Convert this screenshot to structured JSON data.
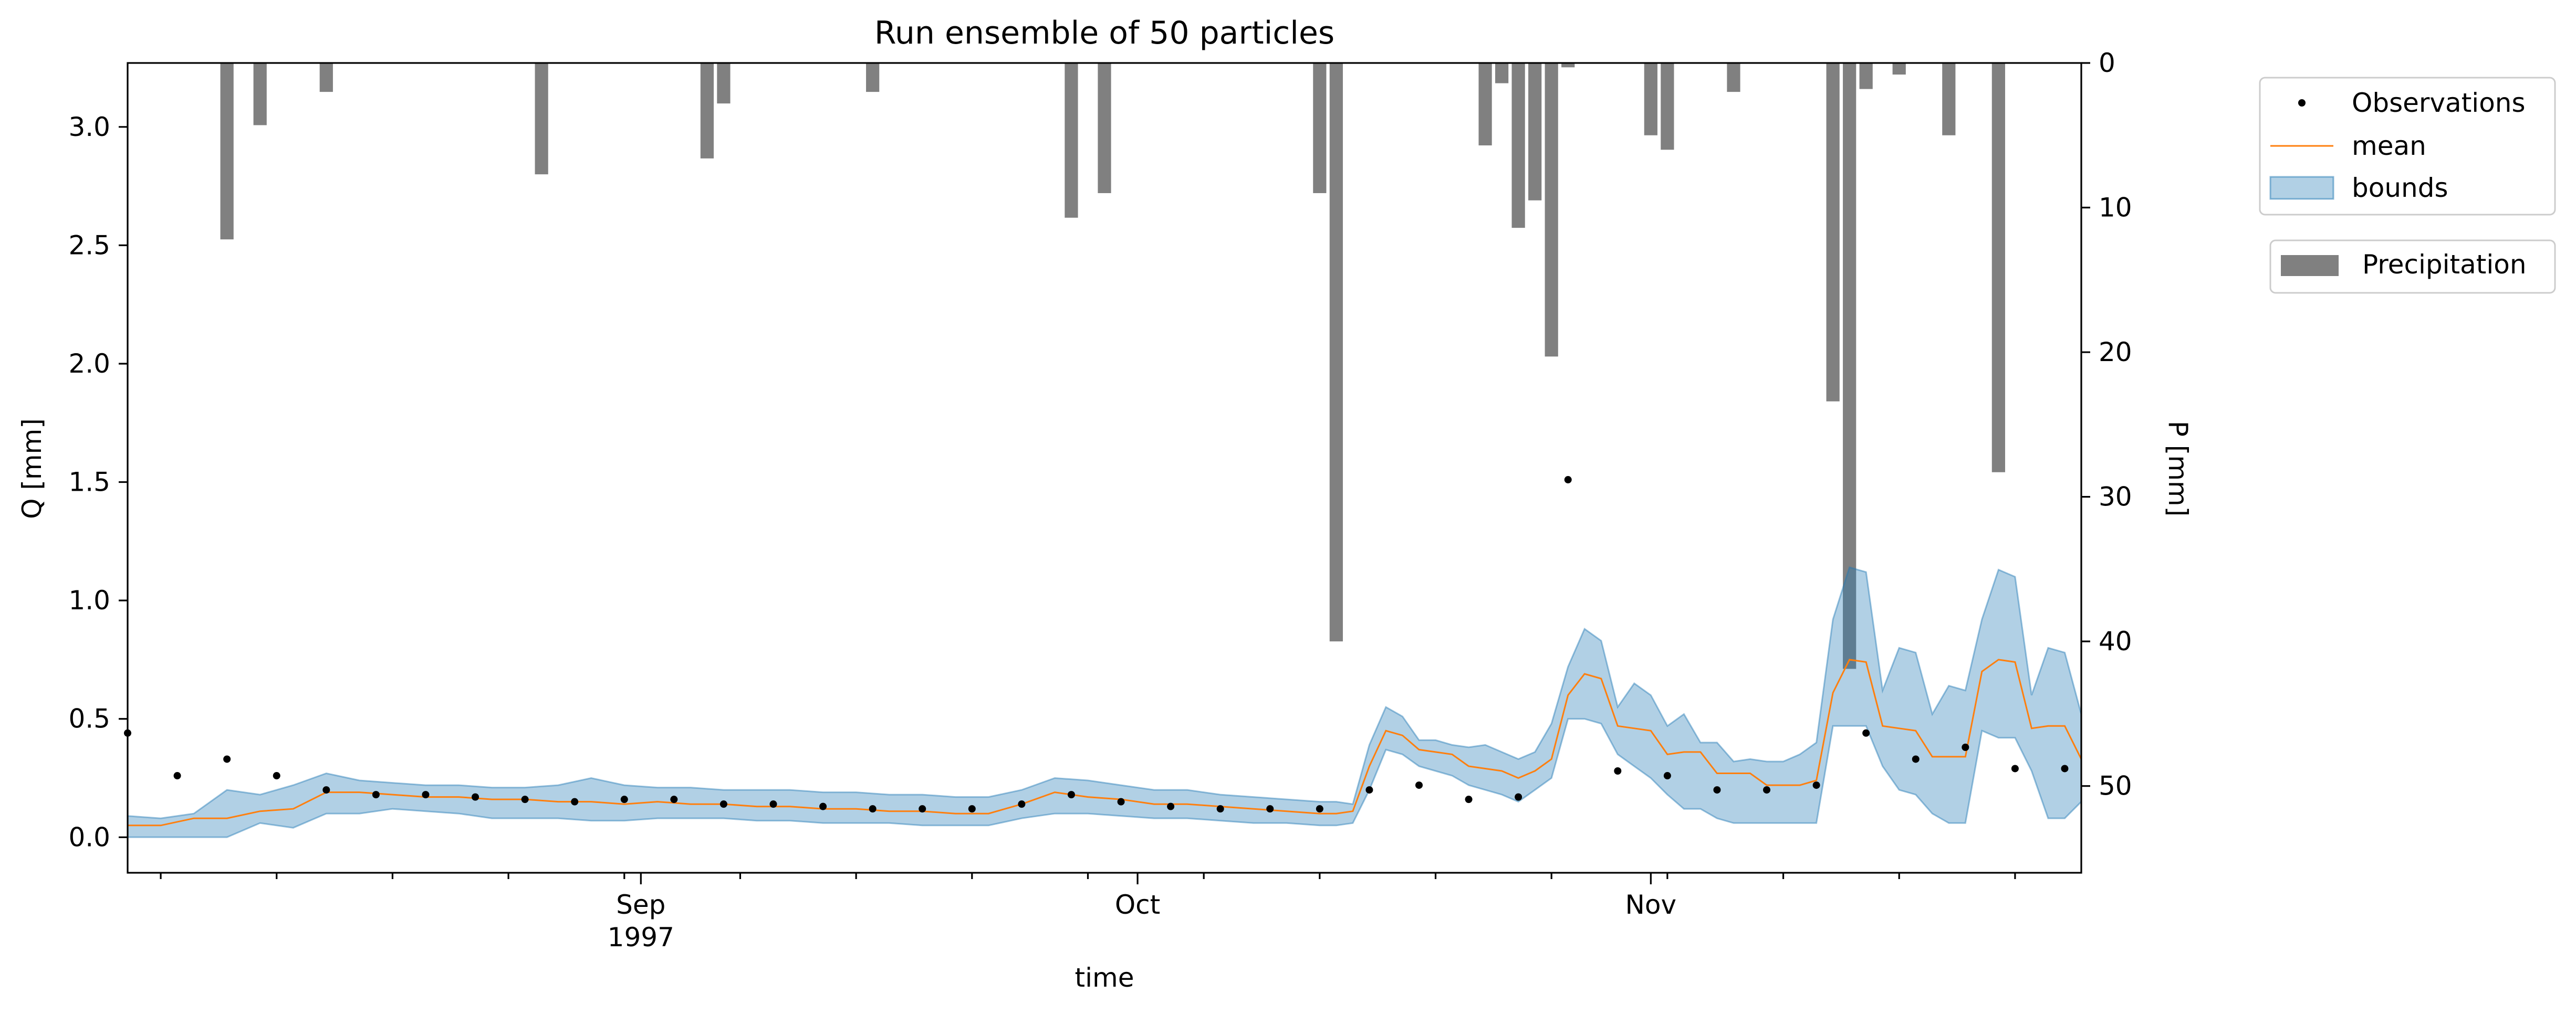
{
  "chart_data": {
    "type": "line",
    "title": "Run ensemble of 50 particles",
    "xlabel": "time",
    "ylabel_left": "Q [mm]",
    "ylabel_right": "P [mm]",
    "x_start": "1997-08-01",
    "x_end": "1997-11-27",
    "x_major_ticks": [
      {
        "date": "1997-09-01",
        "label": "Sep",
        "sublabel": "1997"
      },
      {
        "date": "1997-10-01",
        "label": "Oct",
        "sublabel": ""
      },
      {
        "date": "1997-11-01",
        "label": "Nov",
        "sublabel": ""
      }
    ],
    "x_minor_ticks": [
      "1997-08-03",
      "1997-08-10",
      "1997-08-17",
      "1997-08-24",
      "1997-08-31",
      "1997-09-07",
      "1997-09-14",
      "1997-09-21",
      "1997-09-28",
      "1997-10-05",
      "1997-10-12",
      "1997-10-19",
      "1997-10-26",
      "1997-11-02",
      "1997-11-09",
      "1997-11-16",
      "1997-11-23"
    ],
    "ylim_left": [
      -0.15,
      3.27
    ],
    "yticks_left": [
      0.0,
      0.5,
      1.0,
      1.5,
      2.0,
      2.5,
      3.0
    ],
    "ytick_labels_left": [
      "0.0",
      "0.5",
      "1.0",
      "1.5",
      "2.0",
      "2.5",
      "3.0"
    ],
    "ylim_right": [
      56,
      0
    ],
    "yticks_right": [
      0,
      10,
      20,
      30,
      40,
      50
    ],
    "ytick_labels_right": [
      "0",
      "10",
      "20",
      "30",
      "40",
      "50"
    ],
    "right_axis_inverted": true,
    "legend_entries": [
      "Observations",
      "mean",
      "bounds"
    ],
    "precip_legend_label": "Precipitation",
    "colors": {
      "observations": "#000000",
      "mean": "#ff7f0e",
      "bounds_fill": "#1f77b4",
      "precipitation": "#808080"
    },
    "series": [
      {
        "name": "Observations",
        "kind": "points",
        "x": [
          "1997-08-01",
          "1997-08-04",
          "1997-08-07",
          "1997-08-10",
          "1997-08-13",
          "1997-08-16",
          "1997-08-19",
          "1997-08-22",
          "1997-08-25",
          "1997-08-28",
          "1997-08-31",
          "1997-09-03",
          "1997-09-06",
          "1997-09-09",
          "1997-09-12",
          "1997-09-15",
          "1997-09-18",
          "1997-09-21",
          "1997-09-24",
          "1997-09-27",
          "1997-09-30",
          "1997-10-03",
          "1997-10-06",
          "1997-10-09",
          "1997-10-12",
          "1997-10-15",
          "1997-10-18",
          "1997-10-21",
          "1997-10-24",
          "1997-10-27",
          "1997-10-30",
          "1997-11-02",
          "1997-11-05",
          "1997-11-08",
          "1997-11-11",
          "1997-11-14",
          "1997-11-17",
          "1997-11-20",
          "1997-11-23",
          "1997-11-26"
        ],
        "y": [
          0.44,
          0.26,
          0.33,
          0.26,
          0.2,
          0.18,
          0.18,
          0.17,
          0.16,
          0.15,
          0.16,
          0.16,
          0.14,
          0.14,
          0.13,
          0.12,
          0.12,
          0.12,
          0.14,
          0.18,
          0.15,
          0.13,
          0.12,
          0.12,
          0.12,
          0.2,
          0.22,
          0.16,
          0.17,
          1.51,
          0.28,
          0.26,
          0.2,
          0.2,
          0.22,
          0.44,
          0.33,
          0.38,
          0.29,
          0.29
        ]
      },
      {
        "name": "mean",
        "kind": "line",
        "x": [
          "1997-08-01",
          "1997-08-03",
          "1997-08-05",
          "1997-08-07",
          "1997-08-09",
          "1997-08-11",
          "1997-08-13",
          "1997-08-15",
          "1997-08-17",
          "1997-08-19",
          "1997-08-21",
          "1997-08-23",
          "1997-08-25",
          "1997-08-27",
          "1997-08-29",
          "1997-08-31",
          "1997-09-02",
          "1997-09-04",
          "1997-09-06",
          "1997-09-08",
          "1997-09-10",
          "1997-09-12",
          "1997-09-14",
          "1997-09-16",
          "1997-09-18",
          "1997-09-20",
          "1997-09-22",
          "1997-09-24",
          "1997-09-26",
          "1997-09-28",
          "1997-09-30",
          "1997-10-02",
          "1997-10-04",
          "1997-10-06",
          "1997-10-08",
          "1997-10-10",
          "1997-10-12",
          "1997-10-13",
          "1997-10-14",
          "1997-10-15",
          "1997-10-16",
          "1997-10-17",
          "1997-10-18",
          "1997-10-19",
          "1997-10-20",
          "1997-10-21",
          "1997-10-22",
          "1997-10-23",
          "1997-10-24",
          "1997-10-25",
          "1997-10-26",
          "1997-10-27",
          "1997-10-28",
          "1997-10-29",
          "1997-10-30",
          "1997-10-31",
          "1997-11-01",
          "1997-11-02",
          "1997-11-03",
          "1997-11-04",
          "1997-11-05",
          "1997-11-06",
          "1997-11-07",
          "1997-11-08",
          "1997-11-09",
          "1997-11-10",
          "1997-11-11",
          "1997-11-12",
          "1997-11-13",
          "1997-11-14",
          "1997-11-15",
          "1997-11-16",
          "1997-11-17",
          "1997-11-18",
          "1997-11-19",
          "1997-11-20",
          "1997-11-21",
          "1997-11-22",
          "1997-11-23",
          "1997-11-24",
          "1997-11-25",
          "1997-11-26",
          "1997-11-27"
        ],
        "y": [
          0.05,
          0.05,
          0.08,
          0.08,
          0.11,
          0.12,
          0.19,
          0.19,
          0.18,
          0.17,
          0.17,
          0.16,
          0.16,
          0.15,
          0.15,
          0.14,
          0.15,
          0.14,
          0.14,
          0.13,
          0.13,
          0.12,
          0.12,
          0.11,
          0.11,
          0.1,
          0.1,
          0.14,
          0.19,
          0.17,
          0.16,
          0.14,
          0.14,
          0.13,
          0.12,
          0.11,
          0.1,
          0.1,
          0.11,
          0.3,
          0.45,
          0.43,
          0.37,
          0.36,
          0.35,
          0.3,
          0.29,
          0.28,
          0.25,
          0.28,
          0.33,
          0.6,
          0.69,
          0.67,
          0.47,
          0.46,
          0.45,
          0.35,
          0.36,
          0.36,
          0.27,
          0.27,
          0.27,
          0.22,
          0.22,
          0.22,
          0.24,
          0.61,
          0.75,
          0.74,
          0.47,
          0.46,
          0.45,
          0.34,
          0.34,
          0.34,
          0.7,
          0.75,
          0.74,
          0.46,
          0.47,
          0.47,
          0.33
        ]
      },
      {
        "name": "bounds",
        "kind": "band",
        "x": [
          "1997-08-01",
          "1997-08-03",
          "1997-08-05",
          "1997-08-07",
          "1997-08-09",
          "1997-08-11",
          "1997-08-13",
          "1997-08-15",
          "1997-08-17",
          "1997-08-19",
          "1997-08-21",
          "1997-08-23",
          "1997-08-25",
          "1997-08-27",
          "1997-08-29",
          "1997-08-31",
          "1997-09-02",
          "1997-09-04",
          "1997-09-06",
          "1997-09-08",
          "1997-09-10",
          "1997-09-12",
          "1997-09-14",
          "1997-09-16",
          "1997-09-18",
          "1997-09-20",
          "1997-09-22",
          "1997-09-24",
          "1997-09-26",
          "1997-09-28",
          "1997-09-30",
          "1997-10-02",
          "1997-10-04",
          "1997-10-06",
          "1997-10-08",
          "1997-10-10",
          "1997-10-12",
          "1997-10-13",
          "1997-10-14",
          "1997-10-15",
          "1997-10-16",
          "1997-10-17",
          "1997-10-18",
          "1997-10-19",
          "1997-10-20",
          "1997-10-21",
          "1997-10-22",
          "1997-10-23",
          "1997-10-24",
          "1997-10-25",
          "1997-10-26",
          "1997-10-27",
          "1997-10-28",
          "1997-10-29",
          "1997-10-30",
          "1997-10-31",
          "1997-11-01",
          "1997-11-02",
          "1997-11-03",
          "1997-11-04",
          "1997-11-05",
          "1997-11-06",
          "1997-11-07",
          "1997-11-08",
          "1997-11-09",
          "1997-11-10",
          "1997-11-11",
          "1997-11-12",
          "1997-11-13",
          "1997-11-14",
          "1997-11-15",
          "1997-11-16",
          "1997-11-17",
          "1997-11-18",
          "1997-11-19",
          "1997-11-20",
          "1997-11-21",
          "1997-11-22",
          "1997-11-23",
          "1997-11-24",
          "1997-11-25",
          "1997-11-26",
          "1997-11-27"
        ],
        "lower": [
          0.0,
          0.0,
          0.0,
          0.0,
          0.06,
          0.04,
          0.1,
          0.1,
          0.12,
          0.11,
          0.1,
          0.08,
          0.08,
          0.08,
          0.07,
          0.07,
          0.08,
          0.08,
          0.08,
          0.07,
          0.07,
          0.06,
          0.06,
          0.06,
          0.05,
          0.05,
          0.05,
          0.08,
          0.1,
          0.1,
          0.09,
          0.08,
          0.08,
          0.07,
          0.06,
          0.06,
          0.05,
          0.05,
          0.06,
          0.2,
          0.37,
          0.35,
          0.3,
          0.28,
          0.26,
          0.22,
          0.2,
          0.18,
          0.15,
          0.2,
          0.25,
          0.5,
          0.5,
          0.48,
          0.35,
          0.3,
          0.25,
          0.18,
          0.12,
          0.12,
          0.08,
          0.06,
          0.06,
          0.06,
          0.06,
          0.06,
          0.06,
          0.47,
          0.47,
          0.47,
          0.3,
          0.2,
          0.18,
          0.1,
          0.06,
          0.06,
          0.45,
          0.42,
          0.42,
          0.28,
          0.08,
          0.08,
          0.15
        ],
        "upper": [
          0.09,
          0.08,
          0.1,
          0.2,
          0.18,
          0.22,
          0.27,
          0.24,
          0.23,
          0.22,
          0.22,
          0.21,
          0.21,
          0.22,
          0.25,
          0.22,
          0.21,
          0.21,
          0.2,
          0.2,
          0.2,
          0.19,
          0.19,
          0.18,
          0.18,
          0.17,
          0.17,
          0.2,
          0.25,
          0.24,
          0.22,
          0.2,
          0.2,
          0.18,
          0.17,
          0.16,
          0.15,
          0.15,
          0.14,
          0.39,
          0.55,
          0.51,
          0.41,
          0.41,
          0.39,
          0.38,
          0.39,
          0.36,
          0.33,
          0.36,
          0.48,
          0.72,
          0.88,
          0.83,
          0.55,
          0.65,
          0.6,
          0.47,
          0.52,
          0.4,
          0.4,
          0.32,
          0.33,
          0.32,
          0.32,
          0.35,
          0.4,
          0.92,
          1.14,
          1.12,
          0.62,
          0.8,
          0.78,
          0.52,
          0.64,
          0.62,
          0.92,
          1.13,
          1.1,
          0.6,
          0.8,
          0.78,
          0.52
        ]
      },
      {
        "name": "Precipitation",
        "kind": "bars",
        "x": [
          "1997-08-07",
          "1997-08-09",
          "1997-08-13",
          "1997-08-26",
          "1997-09-05",
          "1997-09-06",
          "1997-09-15",
          "1997-09-27",
          "1997-09-29",
          "1997-10-12",
          "1997-10-13",
          "1997-10-22",
          "1997-10-23",
          "1997-10-24",
          "1997-10-25",
          "1997-10-26",
          "1997-10-27",
          "1997-11-01",
          "1997-11-02",
          "1997-11-06",
          "1997-11-12",
          "1997-11-13",
          "1997-11-14",
          "1997-11-16",
          "1997-11-19",
          "1997-11-22"
        ],
        "values": [
          12.2,
          4.3,
          2.0,
          7.7,
          6.6,
          2.8,
          2.0,
          10.7,
          9.0,
          9.0,
          40.0,
          5.7,
          1.4,
          11.4,
          9.5,
          20.3,
          0.3,
          5.0,
          6.0,
          2.0,
          23.4,
          41.9,
          1.8,
          0.8,
          5.0,
          28.3
        ]
      }
    ]
  }
}
